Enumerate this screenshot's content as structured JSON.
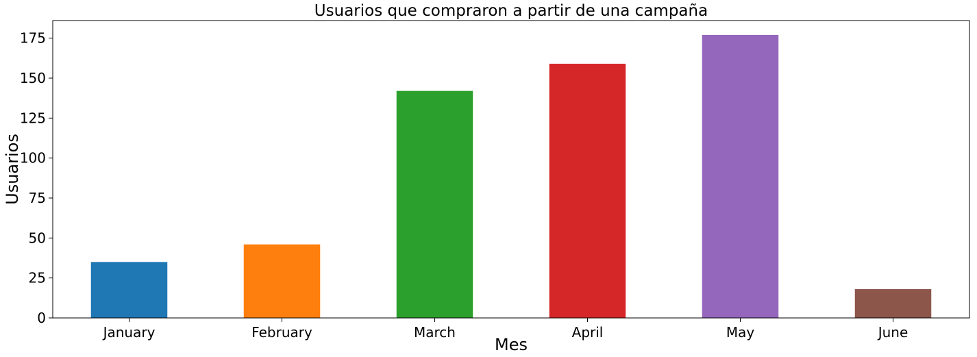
{
  "chart_data": {
    "type": "bar",
    "title": "Usuarios que compraron a partir de una campaña",
    "xlabel": "Mes",
    "ylabel": "Usuarios",
    "categories": [
      "January",
      "February",
      "March",
      "April",
      "May",
      "June"
    ],
    "values": [
      35,
      46,
      142,
      159,
      177,
      18
    ],
    "colors": [
      "#1f77b4",
      "#ff7f0e",
      "#2ca02c",
      "#d62728",
      "#9467bd",
      "#8c564b"
    ],
    "ylim": [
      0,
      186
    ],
    "yticks": [
      0,
      25,
      50,
      75,
      100,
      125,
      150,
      175
    ],
    "grid": false,
    "legend": "none"
  }
}
